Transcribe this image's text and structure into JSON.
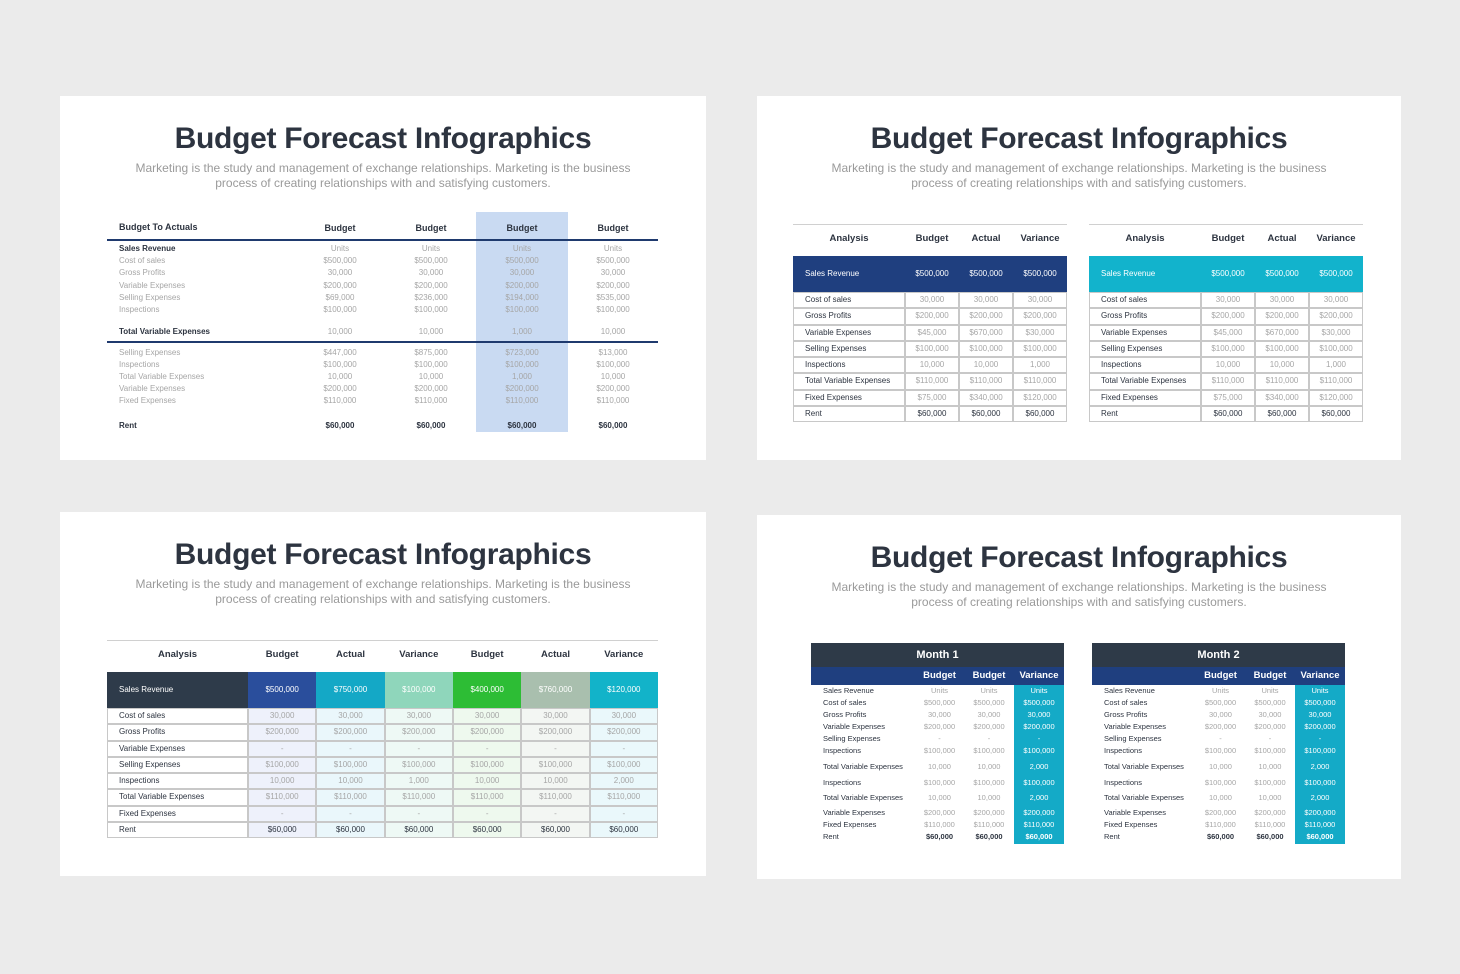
{
  "slides": [
    {
      "title": "Budget Forecast Infographics",
      "subtitle": [
        "Marketing is the study and management of exchange relationships. Marketing is the business",
        "process of creating relationships with and satisfying customers."
      ],
      "table": {
        "header": [
          "Budget To Actuals",
          "Budget",
          "Budget",
          "Budget",
          "Budget"
        ],
        "rows": [
          {
            "label": "Sales Revenue",
            "values": [
              "Units",
              "Units",
              "Units",
              "Units"
            ]
          },
          {
            "label": "Cost of sales",
            "values": [
              "$500,000",
              "$500,000",
              "$500,000",
              "$500,000"
            ]
          },
          {
            "label": "Gross Profits",
            "values": [
              "30,000",
              "30,000",
              "30,000",
              "30,000"
            ]
          },
          {
            "label": "Variable Expenses",
            "values": [
              "$200,000",
              "$200,000",
              "$200,000",
              "$200,000"
            ]
          },
          {
            "label": "Selling Expenses",
            "values": [
              "$69,000",
              "$236,000",
              "$194,000",
              "$535,000"
            ]
          },
          {
            "label": "Inspections",
            "values": [
              "$100,000",
              "$100,000",
              "$100,000",
              "$100,000"
            ]
          },
          {
            "label": "Total Variable Expenses",
            "values": [
              "10,000",
              "10,000",
              "1,000",
              "10,000"
            ]
          },
          {
            "label": "Selling Expenses",
            "values": [
              "$447,000",
              "$875,000",
              "$723,000",
              "$13,000"
            ]
          },
          {
            "label": "Inspections",
            "values": [
              "$100,000",
              "$100,000",
              "$100,000",
              "$100,000"
            ]
          },
          {
            "label": "Total Variable Expenses",
            "values": [
              "10,000",
              "10,000",
              "1,000",
              "10,000"
            ]
          },
          {
            "label": "Variable Expenses",
            "values": [
              "$200,000",
              "$200,000",
              "$200,000",
              "$200,000"
            ]
          },
          {
            "label": "Fixed Expenses",
            "values": [
              "$110,000",
              "$110,000",
              "$110,000",
              "$110,000"
            ]
          },
          {
            "label": "Rent",
            "values": [
              "$60,000",
              "$60,000",
              "$60,000",
              "$60,000"
            ]
          }
        ]
      }
    },
    {
      "title": "Budget Forecast Infographics",
      "subtitle": [
        "Marketing is the study and management of exchange relationships. Marketing is the business",
        "process of creating relationships with and satisfying customers."
      ],
      "tables": [
        {
          "header": [
            "Analysis",
            "Budget",
            "Actual",
            "Variance"
          ],
          "rows": [
            {
              "label": "Sales Revenue",
              "values": [
                "$500,000",
                "$500,000",
                "$500,000"
              ]
            },
            {
              "label": "Cost of sales",
              "values": [
                "30,000",
                "30,000",
                "30,000"
              ]
            },
            {
              "label": "Gross Profits",
              "values": [
                "$200,000",
                "$200,000",
                "$200,000"
              ]
            },
            {
              "label": "Variable Expenses",
              "values": [
                "$45,000",
                "$670,000",
                "$30,000"
              ]
            },
            {
              "label": "Selling Expenses",
              "values": [
                "$100,000",
                "$100,000",
                "$100,000"
              ]
            },
            {
              "label": "Inspections",
              "values": [
                "10,000",
                "10,000",
                "1,000"
              ]
            },
            {
              "label": "Total Variable Expenses",
              "values": [
                "$110,000",
                "$110,000",
                "$110,000"
              ]
            },
            {
              "label": "Fixed Expenses",
              "values": [
                "$75,000",
                "$340,000",
                "$120,000"
              ]
            },
            {
              "label": "Rent",
              "values": [
                "$60,000",
                "$60,000",
                "$60,000"
              ]
            }
          ]
        },
        {
          "header": [
            "Analysis",
            "Budget",
            "Actual",
            "Variance"
          ],
          "rows": [
            {
              "label": "Sales Revenue",
              "values": [
                "$500,000",
                "$500,000",
                "$500,000"
              ]
            },
            {
              "label": "Cost of sales",
              "values": [
                "30,000",
                "30,000",
                "30,000"
              ]
            },
            {
              "label": "Gross Profits",
              "values": [
                "$200,000",
                "$200,000",
                "$200,000"
              ]
            },
            {
              "label": "Variable Expenses",
              "values": [
                "$45,000",
                "$670,000",
                "$30,000"
              ]
            },
            {
              "label": "Selling Expenses",
              "values": [
                "$100,000",
                "$100,000",
                "$100,000"
              ]
            },
            {
              "label": "Inspections",
              "values": [
                "10,000",
                "10,000",
                "1,000"
              ]
            },
            {
              "label": "Total Variable Expenses",
              "values": [
                "$110,000",
                "$110,000",
                "$110,000"
              ]
            },
            {
              "label": "Fixed Expenses",
              "values": [
                "$75,000",
                "$340,000",
                "$120,000"
              ]
            },
            {
              "label": "Rent",
              "values": [
                "$60,000",
                "$60,000",
                "$60,000"
              ]
            }
          ]
        }
      ]
    },
    {
      "title": "Budget Forecast Infographics",
      "subtitle": [
        "Marketing is the study and management of exchange relationships. Marketing is the business",
        "process of creating relationships with and satisfying customers."
      ],
      "table": {
        "header": [
          "Analysis",
          "Budget",
          "Actual",
          "Variance",
          "Budget",
          "Actual",
          "Variance"
        ],
        "rows": [
          {
            "label": "Sales Revenue",
            "values": [
              "$500,000",
              "$750,000",
              "$100,000",
              "$400,000",
              "$760,000",
              "$120,000"
            ]
          },
          {
            "label": "Cost of sales",
            "values": [
              "30,000",
              "30,000",
              "30,000",
              "30,000",
              "30,000",
              "30,000"
            ]
          },
          {
            "label": "Gross Profits",
            "values": [
              "$200,000",
              "$200,000",
              "$200,000",
              "$200,000",
              "$200,000",
              "$200,000"
            ]
          },
          {
            "label": "Variable Expenses",
            "values": [
              "-",
              "-",
              "-",
              "-",
              "-",
              "-"
            ]
          },
          {
            "label": "Selling Expenses",
            "values": [
              "$100,000",
              "$100,000",
              "$100,000",
              "$100,000",
              "$100,000",
              "$100,000"
            ]
          },
          {
            "label": "Inspections",
            "values": [
              "10,000",
              "10,000",
              "1,000",
              "10,000",
              "10,000",
              "2,000"
            ]
          },
          {
            "label": "Total Variable Expenses",
            "values": [
              "$110,000",
              "$110,000",
              "$110,000",
              "$110,000",
              "$110,000",
              "$110,000"
            ]
          },
          {
            "label": "Fixed Expenses",
            "values": [
              "-",
              "-",
              "-",
              "-",
              "-",
              "-"
            ]
          },
          {
            "label": "Rent",
            "values": [
              "$60,000",
              "$60,000",
              "$60,000",
              "$60,000",
              "$60,000",
              "$60,000"
            ]
          }
        ]
      }
    },
    {
      "title": "Budget Forecast Infographics",
      "subtitle": [
        "Marketing is the study and management of exchange relationships. Marketing is the business",
        "process of creating relationships with and satisfying customers."
      ],
      "tables": [
        {
          "caption": "Month 1",
          "header": [
            "Budget",
            "Budget",
            "Variance"
          ],
          "rows": [
            {
              "label": "Sales Revenue",
              "values": [
                "Units",
                "Units",
                "Units"
              ]
            },
            {
              "label": "Cost of sales",
              "values": [
                "$500,000",
                "$500,000",
                "$500,000"
              ]
            },
            {
              "label": "Gross Profits",
              "values": [
                "30,000",
                "30,000",
                "30,000"
              ]
            },
            {
              "label": "Variable Expenses",
              "values": [
                "$200,000",
                "$200,000",
                "$200,000"
              ]
            },
            {
              "label": "Selling Expenses",
              "values": [
                "-",
                "-",
                "-"
              ]
            },
            {
              "label": "Inspections",
              "values": [
                "$100,000",
                "$100,000",
                "$100,000"
              ]
            },
            {
              "label": "Total Variable Expenses",
              "values": [
                "10,000",
                "10,000",
                "2,000"
              ]
            },
            {
              "label": "Inspections",
              "values": [
                "$100,000",
                "$100,000",
                "$100,000"
              ]
            },
            {
              "label": "Total Variable Expenses",
              "values": [
                "10,000",
                "10,000",
                "2,000"
              ]
            },
            {
              "label": "Variable Expenses",
              "values": [
                "$200,000",
                "$200,000",
                "$200,000"
              ]
            },
            {
              "label": "Fixed Expenses",
              "values": [
                "$110,000",
                "$110,000",
                "$110,000"
              ]
            },
            {
              "label": "Rent",
              "values": [
                "$60,000",
                "$60,000",
                "$60,000"
              ]
            }
          ]
        },
        {
          "caption": "Month 2",
          "header": [
            "Budget",
            "Budget",
            "Variance"
          ],
          "rows": [
            {
              "label": "Sales Revenue",
              "values": [
                "Units",
                "Units",
                "Units"
              ]
            },
            {
              "label": "Cost of sales",
              "values": [
                "$500,000",
                "$500,000",
                "$500,000"
              ]
            },
            {
              "label": "Gross Profits",
              "values": [
                "30,000",
                "30,000",
                "30,000"
              ]
            },
            {
              "label": "Variable Expenses",
              "values": [
                "$200,000",
                "$200,000",
                "$200,000"
              ]
            },
            {
              "label": "Selling Expenses",
              "values": [
                "-",
                "-",
                "-"
              ]
            },
            {
              "label": "Inspections",
              "values": [
                "$100,000",
                "$100,000",
                "$100,000"
              ]
            },
            {
              "label": "Total Variable Expenses",
              "values": [
                "10,000",
                "10,000",
                "2,000"
              ]
            },
            {
              "label": "Inspections",
              "values": [
                "$100,000",
                "$100,000",
                "$100,000"
              ]
            },
            {
              "label": "Total Variable Expenses",
              "values": [
                "10,000",
                "10,000",
                "2,000"
              ]
            },
            {
              "label": "Variable Expenses",
              "values": [
                "$200,000",
                "$200,000",
                "$200,000"
              ]
            },
            {
              "label": "Fixed Expenses",
              "values": [
                "$110,000",
                "$110,000",
                "$110,000"
              ]
            },
            {
              "label": "Rent",
              "values": [
                "$60,000",
                "$60,000",
                "$60,000"
              ]
            }
          ]
        }
      ]
    }
  ]
}
